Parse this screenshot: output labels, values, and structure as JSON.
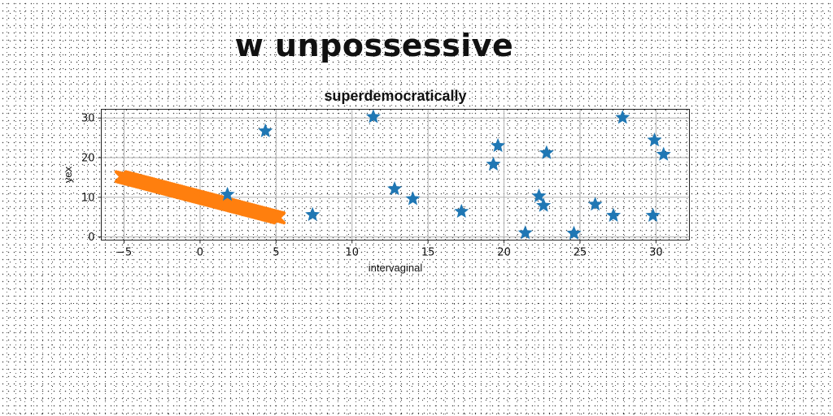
{
  "header": {
    "title": "w unpossessive"
  },
  "chart_data": {
    "type": "scatter",
    "title": "superdemocratically",
    "xlabel": "intervaginal",
    "ylabel": "yex",
    "xlim": [
      -6.5,
      32.2
    ],
    "ylim": [
      -0.8,
      32.2
    ],
    "xticks": [
      -5,
      0,
      5,
      10,
      15,
      20,
      25,
      30
    ],
    "yticks": [
      0,
      10,
      20,
      30
    ],
    "grid": true,
    "colors": {
      "series1": "#1f77b4",
      "series2": "#ff7f0e"
    },
    "series": [
      {
        "marker": "star",
        "x": [
          1.8,
          4.3,
          7.4,
          11.4,
          12.8,
          14.0,
          17.2,
          19.3,
          19.6,
          21.4,
          22.3,
          22.6,
          22.8,
          24.6,
          26.0,
          27.2,
          27.8,
          29.8,
          29.9,
          30.5
        ],
        "y": [
          10.7,
          26.7,
          5.6,
          30.3,
          12.1,
          9.6,
          6.4,
          18.3,
          23.0,
          1.0,
          10.3,
          7.9,
          21.2,
          0.9,
          8.2,
          5.4,
          30.1,
          5.4,
          24.4,
          20.8
        ]
      },
      {
        "marker": "x",
        "x_start": -5.2,
        "x_end": 5.2,
        "y_start": 15.2,
        "y_end": 4.8
      }
    ]
  }
}
